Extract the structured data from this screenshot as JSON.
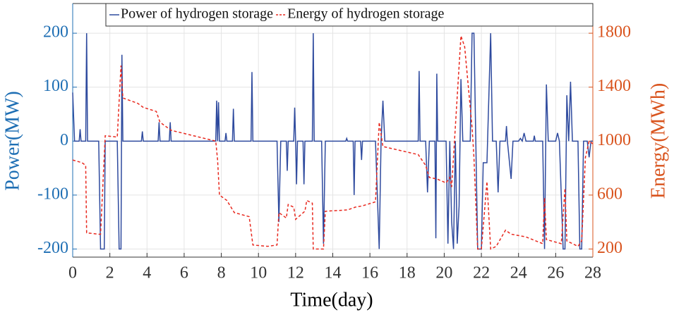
{
  "chart_data": {
    "type": "line",
    "xlabel": "Time(day)",
    "ylabel": "Power(MW)",
    "y2label": "Energy(MWh)",
    "xlim": [
      0,
      28
    ],
    "xticks": [
      0,
      2,
      4,
      6,
      8,
      10,
      12,
      14,
      16,
      18,
      20,
      22,
      24,
      26,
      28
    ],
    "ylim": [
      -215,
      255
    ],
    "yticks": [
      -200,
      -100,
      0,
      100,
      200
    ],
    "y2lim": [
      140,
      2020
    ],
    "y2ticks": [
      200,
      600,
      1000,
      1400,
      1800
    ],
    "grid": true,
    "legend": "top",
    "y_color": "#1f6fb4",
    "y2_color": "#d9541e",
    "series": [
      {
        "name": "Power of hydrogen storage",
        "color": "#2e4a9e",
        "dash": false,
        "axis": "y",
        "x": [
          0,
          0.1,
          0.35,
          0.4,
          0.45,
          0.7,
          0.75,
          0.8,
          1.4,
          1.5,
          1.7,
          1.75,
          2.4,
          2.5,
          2.6,
          2.65,
          2.7,
          3.7,
          3.75,
          3.8,
          4.6,
          4.65,
          4.7,
          5.2,
          5.25,
          5.3,
          7.7,
          7.75,
          7.8,
          7.85,
          7.9,
          8.2,
          8.25,
          8.3,
          8.6,
          8.65,
          8.7,
          9.6,
          9.65,
          9.7,
          11.0,
          11.1,
          11.2,
          11.5,
          11.55,
          11.6,
          11.9,
          11.95,
          12.0,
          12.05,
          12.1,
          12.4,
          12.45,
          12.5,
          12.9,
          12.95,
          13.0,
          13.4,
          13.5,
          13.6,
          14.7,
          14.75,
          14.8,
          15.1,
          15.15,
          15.2,
          15.5,
          15.55,
          15.6,
          16.3,
          16.5,
          16.6,
          16.7,
          16.8,
          18.6,
          18.65,
          18.7,
          19.0,
          19.1,
          19.2,
          19.5,
          19.55,
          19.6,
          19.65,
          20.1,
          20.2,
          20.3,
          20.4,
          20.5,
          20.6,
          20.7,
          20.8,
          20.9,
          21.0,
          21.4,
          21.5,
          21.6,
          21.7,
          21.8,
          22.0,
          22.1,
          22.3,
          22.5,
          22.6,
          22.8,
          22.9,
          23.0,
          23.3,
          23.35,
          23.4,
          23.6,
          23.7,
          24.0,
          24.1,
          24.2,
          24.3,
          24.4,
          24.8,
          24.85,
          24.9,
          25.3,
          25.4,
          25.5,
          25.6,
          26.0,
          26.1,
          26.2,
          26.4,
          26.5,
          26.6,
          26.7,
          26.8,
          26.9,
          27.2,
          27.3,
          27.4,
          27.5,
          27.7,
          27.8,
          27.9,
          28
        ],
        "values": [
          90,
          0,
          0,
          22,
          0,
          0,
          200,
          0,
          0,
          -200,
          -200,
          0,
          0,
          -200,
          -200,
          160,
          0,
          0,
          18,
          0,
          0,
          35,
          0,
          0,
          35,
          0,
          0,
          75,
          0,
          72,
          0,
          0,
          15,
          0,
          0,
          60,
          0,
          0,
          128,
          0,
          0,
          -150,
          0,
          0,
          -55,
          0,
          0,
          62,
          0,
          -80,
          0,
          0,
          -80,
          0,
          0,
          200,
          0,
          0,
          -190,
          0,
          0,
          5,
          0,
          0,
          -100,
          0,
          0,
          -35,
          0,
          0,
          -200,
          0,
          75,
          0,
          0,
          130,
          0,
          0,
          -95,
          0,
          0,
          -180,
          125,
          0,
          0,
          -190,
          0,
          -150,
          -200,
          0,
          -190,
          -120,
          115,
          0,
          0,
          200,
          200,
          0,
          -200,
          -200,
          -40,
          -40,
          200,
          0,
          0,
          -95,
          0,
          0,
          28,
          0,
          -70,
          0,
          0,
          5,
          0,
          15,
          0,
          0,
          10,
          0,
          0,
          -200,
          105,
          0,
          0,
          15,
          0,
          -200,
          -200,
          85,
          0,
          110,
          0,
          0,
          -200,
          -200,
          0,
          0,
          -30,
          0,
          0
        ]
      },
      {
        "name": "Energy of hydrogen storage",
        "color": "#e8281e",
        "dash": true,
        "axis": "y2",
        "x": [
          0,
          0.5,
          0.7,
          0.75,
          1.4,
          1.5,
          1.75,
          2.4,
          2.6,
          2.7,
          3.5,
          3.8,
          4.5,
          4.7,
          5.3,
          7.7,
          7.8,
          7.9,
          8.3,
          8.7,
          9.5,
          9.7,
          10.5,
          11.0,
          11.1,
          11.5,
          11.6,
          11.9,
          12.0,
          12.5,
          12.6,
          12.9,
          12.95,
          13.5,
          13.6,
          14.8,
          15.2,
          15.6,
          16.3,
          16.5,
          16.7,
          18.6,
          19.0,
          19.2,
          19.6,
          20.1,
          20.3,
          20.4,
          20.9,
          21.1,
          21.5,
          21.6,
          21.8,
          22.0,
          22.3,
          22.5,
          22.8,
          23.3,
          23.6,
          24.4,
          25.3,
          25.4,
          25.5,
          26.3,
          26.5,
          26.6,
          27.2,
          27.4,
          27.6,
          27.8,
          28
        ],
        "values": [
          860,
          840,
          820,
          320,
          310,
          310,
          1040,
          1030,
          1560,
          1320,
          1280,
          1250,
          1220,
          1140,
          1080,
          1000,
          860,
          600,
          560,
          470,
          440,
          230,
          220,
          230,
          470,
          430,
          530,
          510,
          420,
          480,
          560,
          540,
          200,
          200,
          480,
          490,
          510,
          520,
          550,
          1140,
          960,
          900,
          820,
          730,
          720,
          690,
          730,
          660,
          1780,
          1700,
          1100,
          880,
          200,
          200,
          700,
          200,
          220,
          340,
          310,
          290,
          240,
          580,
          270,
          240,
          650,
          260,
          220,
          260,
          880,
          1000,
          980
        ]
      }
    ]
  }
}
